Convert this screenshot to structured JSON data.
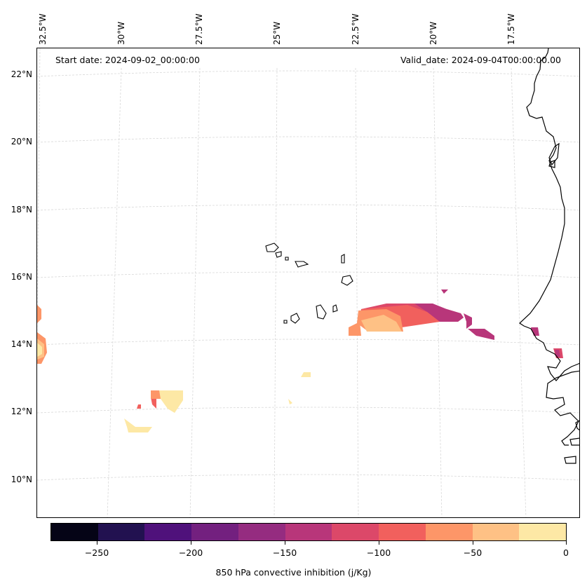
{
  "header": {
    "start_date": "Start date: 2024-09-02_00:00:00",
    "valid_date": "Valid_date: 2024-09-04T00:00:00.00"
  },
  "lon_labels": [
    "32.5°W",
    "30°W",
    "27.5°W",
    "25°W",
    "22.5°W",
    "20°W",
    "17.5°W"
  ],
  "lat_labels": [
    "22°N",
    "20°N",
    "18°N",
    "16°N",
    "14°N",
    "12°N",
    "10°N"
  ],
  "colorbar": {
    "title": "850 hPa convective inhibition (j/Kg)",
    "ticks": [
      "−250",
      "−200",
      "−150",
      "−100",
      "−50",
      "0"
    ],
    "colors": [
      "#050416",
      "#221150",
      "#4f117b",
      "#73207f",
      "#952c80",
      "#b8367a",
      "#dc4869",
      "#f1605d",
      "#fd9668",
      "#fec185",
      "#fde8a5"
    ]
  },
  "chart_data": {
    "type": "heatmap",
    "variable": "850 hPa convective inhibition (j/Kg)",
    "units": "j/Kg",
    "color_range": [
      -275,
      0
    ],
    "levels": [
      -275,
      -250,
      -225,
      -200,
      -175,
      -150,
      -125,
      -100,
      -75,
      -50,
      -25,
      0
    ],
    "lon_range": [
      "32.5°W",
      "17.5°W"
    ],
    "lat_range": [
      "10°N",
      "22°N"
    ],
    "start_date": "2024-09-02_00:00:00",
    "valid_date": "2024-09-04T00:00:00.00",
    "features": [
      {
        "region": "east of Cape Verde",
        "min_value": -150,
        "max_value": -25
      },
      {
        "region": "southwest near 12°N 30°W",
        "min_value": -75,
        "max_value": 0
      },
      {
        "region": "west edge near 14°N 32.5°W",
        "min_value": -50,
        "max_value": 0
      },
      {
        "region": "Senegal coast",
        "min_value": -150,
        "max_value": -75
      }
    ]
  }
}
